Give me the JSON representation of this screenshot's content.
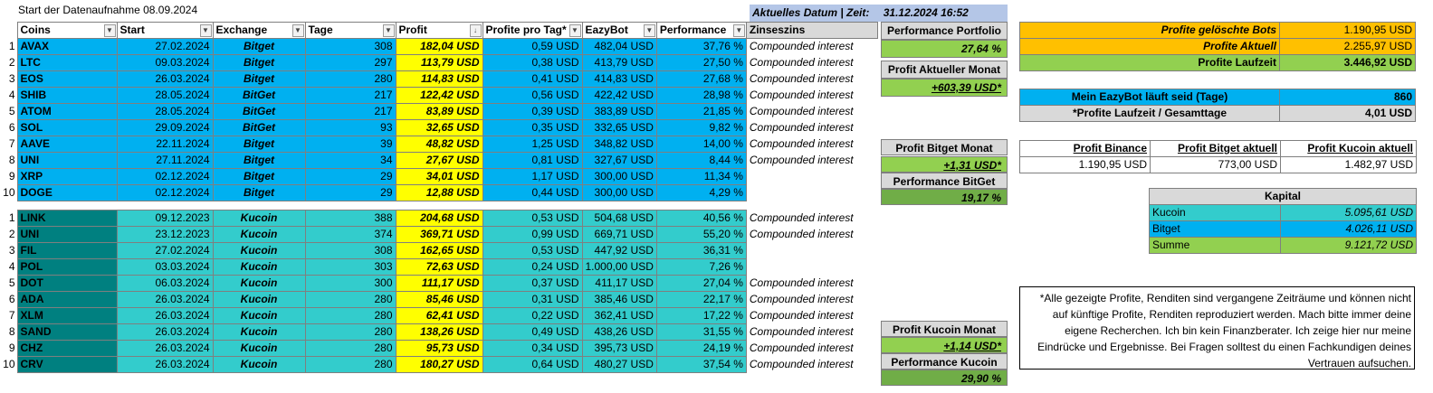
{
  "sheet_title": "Start der Datenaufnahme 08.09.2024",
  "current_date_label": "Aktuelles Datum | Zeit:",
  "current_date_value": "31.12.2024 16:52",
  "headers": {
    "coins": "Coins",
    "start": "Start",
    "exchange": "Exchange",
    "tage": "Tage",
    "profit": "Profit",
    "profit_per_day": "Profite pro Tag*",
    "eazybot": "EazyBot",
    "performance": "Performance",
    "zinseszins": "Zinseszins"
  },
  "table1": [
    {
      "n": "1",
      "coin": "AVAX",
      "start": "27.02.2024",
      "exchange": "Bitget",
      "tage": "308",
      "profit": "182,04 USD",
      "ppd": "0,59 USD",
      "eazybot": "482,04 USD",
      "perf": "37,76 %",
      "zz": "Compounded interest"
    },
    {
      "n": "2",
      "coin": "LTC",
      "start": "09.03.2024",
      "exchange": "Bitget",
      "tage": "297",
      "profit": "113,79 USD",
      "ppd": "0,38 USD",
      "eazybot": "413,79 USD",
      "perf": "27,50 %",
      "zz": "Compounded interest"
    },
    {
      "n": "3",
      "coin": "EOS",
      "start": "26.03.2024",
      "exchange": "Bitget",
      "tage": "280",
      "profit": "114,83 USD",
      "ppd": "0,41 USD",
      "eazybot": "414,83 USD",
      "perf": "27,68 %",
      "zz": "Compounded interest"
    },
    {
      "n": "4",
      "coin": "SHIB",
      "start": "28.05.2024",
      "exchange": "BitGet",
      "tage": "217",
      "profit": "122,42 USD",
      "ppd": "0,56 USD",
      "eazybot": "422,42 USD",
      "perf": "28,98 %",
      "zz": "Compounded interest"
    },
    {
      "n": "5",
      "coin": "ATOM",
      "start": "28.05.2024",
      "exchange": "BitGet",
      "tage": "217",
      "profit": "83,89 USD",
      "ppd": "0,39 USD",
      "eazybot": "383,89 USD",
      "perf": "21,85 %",
      "zz": "Compounded interest"
    },
    {
      "n": "6",
      "coin": "SOL",
      "start": "29.09.2024",
      "exchange": "BitGet",
      "tage": "93",
      "profit": "32,65 USD",
      "ppd": "0,35 USD",
      "eazybot": "332,65 USD",
      "perf": "9,82 %",
      "zz": "Compounded interest"
    },
    {
      "n": "7",
      "coin": "AAVE",
      "start": "22.11.2024",
      "exchange": "Bitget",
      "tage": "39",
      "profit": "48,82 USD",
      "ppd": "1,25 USD",
      "eazybot": "348,82 USD",
      "perf": "14,00 %",
      "zz": "Compounded interest"
    },
    {
      "n": "8",
      "coin": "UNI",
      "start": "27.11.2024",
      "exchange": "Bitget",
      "tage": "34",
      "profit": "27,67 USD",
      "ppd": "0,81 USD",
      "eazybot": "327,67 USD",
      "perf": "8,44 %",
      "zz": "Compounded interest"
    },
    {
      "n": "9",
      "coin": "XRP",
      "start": "02.12.2024",
      "exchange": "Bitget",
      "tage": "29",
      "profit": "34,01 USD",
      "ppd": "1,17 USD",
      "eazybot": "300,00 USD",
      "perf": "11,34 %",
      "zz": ""
    },
    {
      "n": "10",
      "coin": "DOGE",
      "start": "02.12.2024",
      "exchange": "Bitget",
      "tage": "29",
      "profit": "12,88 USD",
      "ppd": "0,44 USD",
      "eazybot": "300,00 USD",
      "perf": "4,29 %",
      "zz": ""
    }
  ],
  "table2": [
    {
      "n": "1",
      "coin": "LINK",
      "start": "09.12.2023",
      "exchange": "Kucoin",
      "tage": "388",
      "profit": "204,68 USD",
      "ppd": "0,53 USD",
      "eazybot": "504,68 USD",
      "perf": "40,56 %",
      "zz": "Compounded interest"
    },
    {
      "n": "2",
      "coin": "UNI",
      "start": "23.12.2023",
      "exchange": "Kucoin",
      "tage": "374",
      "profit": "369,71 USD",
      "ppd": "0,99 USD",
      "eazybot": "669,71 USD",
      "perf": "55,20 %",
      "zz": "Compounded interest"
    },
    {
      "n": "3",
      "coin": "FIL",
      "start": "27.02.2024",
      "exchange": "Kucoin",
      "tage": "308",
      "profit": "162,65 USD",
      "ppd": "0,53 USD",
      "eazybot": "447,92 USD",
      "perf": "36,31 %",
      "zz": ""
    },
    {
      "n": "4",
      "coin": "POL",
      "start": "03.03.2024",
      "exchange": "Kucoin",
      "tage": "303",
      "profit": "72,63 USD",
      "ppd": "0,24 USD",
      "eazybot": "1.000,00 USD",
      "perf": "7,26 %",
      "zz": ""
    },
    {
      "n": "5",
      "coin": "DOT",
      "start": "06.03.2024",
      "exchange": "Kucoin",
      "tage": "300",
      "profit": "111,17 USD",
      "ppd": "0,37 USD",
      "eazybot": "411,17 USD",
      "perf": "27,04 %",
      "zz": "Compounded interest"
    },
    {
      "n": "6",
      "coin": "ADA",
      "start": "26.03.2024",
      "exchange": "Kucoin",
      "tage": "280",
      "profit": "85,46 USD",
      "ppd": "0,31 USD",
      "eazybot": "385,46 USD",
      "perf": "22,17 %",
      "zz": "Compounded interest"
    },
    {
      "n": "7",
      "coin": "XLM",
      "start": "26.03.2024",
      "exchange": "Kucoin",
      "tage": "280",
      "profit": "62,41 USD",
      "ppd": "0,22 USD",
      "eazybot": "362,41 USD",
      "perf": "17,22 %",
      "zz": "Compounded interest"
    },
    {
      "n": "8",
      "coin": "SAND",
      "start": "26.03.2024",
      "exchange": "Kucoin",
      "tage": "280",
      "profit": "138,26 USD",
      "ppd": "0,49 USD",
      "eazybot": "438,26 USD",
      "perf": "31,55 %",
      "zz": "Compounded interest"
    },
    {
      "n": "9",
      "coin": "CHZ",
      "start": "26.03.2024",
      "exchange": "Kucoin",
      "tage": "280",
      "profit": "95,73 USD",
      "ppd": "0,34 USD",
      "eazybot": "395,73 USD",
      "perf": "24,19 %",
      "zz": "Compounded interest"
    },
    {
      "n": "10",
      "coin": "CRV",
      "start": "26.03.2024",
      "exchange": "Kucoin",
      "tage": "280",
      "profit": "180,27 USD",
      "ppd": "0,64 USD",
      "eazybot": "480,27 USD",
      "perf": "37,54 %",
      "zz": "Compounded interest"
    }
  ],
  "side": {
    "perf_portfolio_label": "Performance Portfolio",
    "perf_portfolio_value": "27,64 %",
    "profit_month_label": "Profit Aktueller Monat",
    "profit_month_value": "+603,39 USD*",
    "bitget_month_label": "Profit Bitget Monat",
    "bitget_month_value": "+1,31 USD*",
    "bitget_perf_label": "Performance BitGet",
    "bitget_perf_value": "19,17 %",
    "kucoin_month_label": "Profit Kucoin Monat",
    "kucoin_month_value": "+1,14 USD*",
    "kucoin_perf_label": "Performance Kucoin",
    "kucoin_perf_value": "29,90 %"
  },
  "summary": {
    "deleted_label": "Profite gelöschte Bots",
    "deleted_value": "1.190,95 USD",
    "current_label": "Profite Aktuell",
    "current_value": "2.255,97 USD",
    "runtime_label": "Profite Laufzeit",
    "runtime_value": "3.446,92 USD",
    "days_label": "Mein EazyBot läuft seid (Tage)",
    "days_value": "860",
    "ratio_label": "*Profite Laufzeit  / Gesamttage",
    "ratio_value": "4,01 USD",
    "binance_label": "Profit Binance",
    "binance_value": "1.190,95 USD",
    "bitget_label": "Profit Bitget aktuell",
    "bitget_value": "773,00 USD",
    "kucoin_label": "Profit Kucoin aktuell",
    "kucoin_value": "1.482,97 USD",
    "kapital_label": "Kapital",
    "kap_kucoin_label": "Kucoin",
    "kap_kucoin_value": "5.095,61 USD",
    "kap_bitget_label": "Bitget",
    "kap_bitget_value": "4.026,11 USD",
    "kap_sum_label": "Summe",
    "kap_sum_value": "9.121,72 USD"
  },
  "disclaimer": "*Alle gezeigte Profite, Renditen sind vergangene Zeiträume und können nicht auf künftige Profite, Renditen reproduziert werden. Mach bitte immer deine eigene Recherchen. Ich bin kein Finanzberater. Ich zeige hier nur meine Eindrücke und Ergebnisse. Bei Fragen solltest du einen Fachkundigen deines Vertrauen aufsuchen.",
  "colors": {
    "bitget_row": "#00b0f0",
    "bitget_coin": "#0070c0",
    "kucoin_row": "#33cccc",
    "kucoin_coin": "#008080",
    "profit": "#ffff00",
    "green": "#92d050",
    "orange": "#ffc000",
    "grey": "#d9d9d9"
  }
}
